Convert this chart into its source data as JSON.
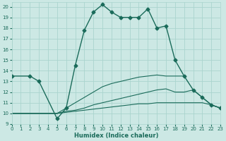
{
  "xlabel": "Humidex (Indice chaleur)",
  "xlim": [
    0,
    23
  ],
  "ylim": [
    9,
    20.4
  ],
  "yticks": [
    9,
    10,
    11,
    12,
    13,
    14,
    15,
    16,
    17,
    18,
    19,
    20
  ],
  "xticks": [
    0,
    1,
    2,
    3,
    4,
    5,
    6,
    7,
    8,
    9,
    10,
    11,
    12,
    13,
    14,
    15,
    16,
    17,
    18,
    19,
    20,
    21,
    22,
    23
  ],
  "bg_color": "#cce8e4",
  "grid_color": "#aad4ce",
  "line_color": "#1a6b5a",
  "main_line": {
    "x": [
      0,
      2,
      3,
      5,
      6,
      7,
      8,
      9,
      10,
      11,
      12,
      13,
      14,
      15,
      16,
      17,
      18,
      19,
      20,
      21,
      22,
      23
    ],
    "y": [
      13.5,
      13.5,
      13.0,
      9.5,
      10.5,
      14.5,
      17.8,
      19.5,
      20.2,
      19.5,
      19.0,
      19.0,
      19.0,
      19.8,
      18.0,
      18.2,
      15.0,
      13.5,
      12.2,
      11.5,
      10.8,
      10.5
    ]
  },
  "flat_lines": [
    {
      "x": [
        0,
        2,
        3,
        5,
        6,
        7,
        8,
        9,
        10,
        11,
        12,
        13,
        14,
        15,
        16,
        17,
        18,
        19
      ],
      "y": [
        10.0,
        10.0,
        10.0,
        10.0,
        10.5,
        11.0,
        11.5,
        12.0,
        12.5,
        12.8,
        13.0,
        13.2,
        13.4,
        13.5,
        13.6,
        13.5,
        13.5,
        13.5
      ]
    },
    {
      "x": [
        0,
        2,
        3,
        5,
        6,
        7,
        8,
        9,
        10,
        11,
        12,
        13,
        14,
        15,
        16,
        17,
        18,
        19,
        20,
        21,
        22,
        23
      ],
      "y": [
        10.0,
        10.0,
        10.0,
        10.0,
        10.2,
        10.3,
        10.5,
        10.8,
        11.0,
        11.2,
        11.4,
        11.6,
        11.8,
        12.0,
        12.2,
        12.3,
        12.0,
        12.0,
        12.2,
        11.5,
        10.8,
        10.5
      ]
    },
    {
      "x": [
        0,
        2,
        3,
        5,
        6,
        7,
        8,
        9,
        10,
        11,
        12,
        13,
        14,
        15,
        16,
        17,
        18,
        19,
        20,
        21,
        22,
        23
      ],
      "y": [
        10.0,
        10.0,
        10.0,
        10.0,
        10.1,
        10.2,
        10.3,
        10.4,
        10.5,
        10.6,
        10.7,
        10.8,
        10.9,
        10.9,
        11.0,
        11.0,
        11.0,
        11.0,
        11.0,
        11.0,
        10.8,
        10.5
      ]
    }
  ]
}
